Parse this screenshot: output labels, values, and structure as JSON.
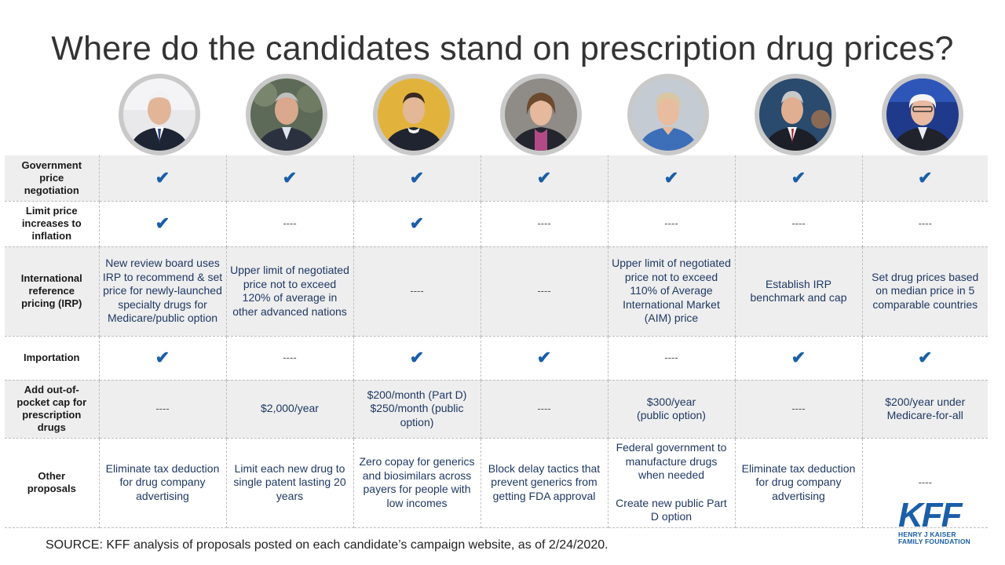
{
  "title": "Where do the candidates stand on prescription drug prices?",
  "colors": {
    "check": "#1a5ea8",
    "shaded_row": "#eeeeee",
    "value_text": "#1f3864",
    "kff_brand": "#1a5ea8"
  },
  "candidates": [
    {
      "icon": "candidate-1-photo"
    },
    {
      "icon": "candidate-2-photo"
    },
    {
      "icon": "candidate-3-photo"
    },
    {
      "icon": "candidate-4-photo"
    },
    {
      "icon": "candidate-5-photo"
    },
    {
      "icon": "candidate-6-photo"
    },
    {
      "icon": "candidate-7-photo"
    }
  ],
  "check_symbol": "✔",
  "dash_symbol": "----",
  "rows": [
    {
      "label": "Government price negotiation",
      "cells": [
        "✔",
        "✔",
        "✔",
        "✔",
        "✔",
        "✔",
        "✔"
      ]
    },
    {
      "label": "Limit price increases to inflation",
      "cells": [
        "✔",
        "----",
        "✔",
        "----",
        "----",
        "----",
        "----"
      ]
    },
    {
      "label": "International reference pricing (IRP)",
      "cells": [
        "New review board uses IRP to recommend & set price for newly-launched specialty drugs for Medicare/public option",
        "Upper limit of negotiated price not to exceed 120% of average in other advanced nations",
        "----",
        "----",
        "Upper limit of negotiated price not to exceed 110% of Average International Market (AIM) price",
        "Establish IRP benchmark and cap",
        "Set drug prices based on median price in 5 comparable countries"
      ]
    },
    {
      "label": "Importation",
      "cells": [
        "✔",
        "----",
        "✔",
        "✔",
        "----",
        "✔",
        "✔"
      ]
    },
    {
      "label": "Add out-of-pocket cap for prescription drugs",
      "cells": [
        "----",
        "$2,000/year",
        [
          "$200/month (Part D)",
          "$250/month (public option)"
        ],
        "----",
        [
          "$300/year",
          "(public option)"
        ],
        "----",
        "$200/year under Medicare-for-all"
      ]
    },
    {
      "label": "Other proposals",
      "cells": [
        "Eliminate tax deduction for drug company advertising",
        "Limit each new drug to single patent lasting 20 years",
        "Zero copay for generics and biosimilars across payers for people with low incomes",
        "Block delay tactics that prevent generics from getting FDA approval",
        [
          "Federal government to manufacture drugs when needed",
          "",
          "Create new public Part D option"
        ],
        "Eliminate tax deduction for drug company advertising",
        "----"
      ]
    }
  ],
  "source": "SOURCE: KFF analysis of proposals posted on each candidate’s campaign website, as of 2/24/2020.",
  "logo": {
    "mark": "KFF",
    "line1": "HENRY J KAISER",
    "line2": "FAMILY FOUNDATION"
  }
}
